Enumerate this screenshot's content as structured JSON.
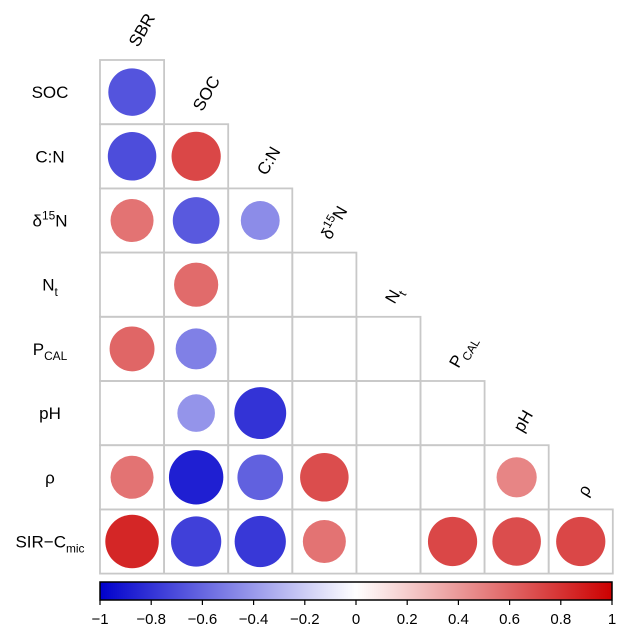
{
  "chart_data": {
    "type": "heatmap",
    "subtype": "correlation-circles-lower-triangle",
    "variables": [
      {
        "key": "SBR",
        "base": "SBR"
      },
      {
        "key": "SOC",
        "base": "SOC"
      },
      {
        "key": "C:N",
        "base": "C:N"
      },
      {
        "key": "d15N",
        "base": "δ",
        "sup": "15",
        "tail": "N"
      },
      {
        "key": "Nt",
        "base": "N",
        "sub": "t"
      },
      {
        "key": "PCAL",
        "base": "P",
        "sub": "CAL"
      },
      {
        "key": "pH",
        "base": "pH"
      },
      {
        "key": "rho",
        "base": "ρ"
      },
      {
        "key": "SIR-Cmic",
        "base": "SIR−C",
        "sub": "mic"
      }
    ],
    "row_variables": [
      "SOC",
      "C:N",
      "d15N",
      "Nt",
      "PCAL",
      "pH",
      "rho",
      "SIR-Cmic"
    ],
    "column_variables": [
      "SBR",
      "SOC",
      "C:N",
      "d15N",
      "Nt",
      "PCAL",
      "pH",
      "rho"
    ],
    "matrix": [
      [
        -0.67,
        null,
        null,
        null,
        null,
        null,
        null,
        null
      ],
      [
        -0.7,
        0.72,
        null,
        null,
        null,
        null,
        null,
        null
      ],
      [
        0.55,
        -0.65,
        -0.45,
        null,
        null,
        null,
        null,
        null
      ],
      [
        null,
        0.58,
        null,
        null,
        null,
        null,
        null,
        null
      ],
      [
        0.6,
        -0.5,
        null,
        null,
        null,
        null,
        null,
        null
      ],
      [
        null,
        -0.42,
        -0.8,
        null,
        null,
        null,
        null,
        null
      ],
      [
        0.55,
        -0.88,
        -0.62,
        0.7,
        null,
        null,
        0.48,
        null
      ],
      [
        0.85,
        -0.75,
        -0.78,
        0.55,
        null,
        0.72,
        0.7,
        0.72
      ]
    ],
    "color_scale": {
      "min": -1,
      "max": 1,
      "ticks": [
        -1,
        -0.8,
        -0.6,
        -0.4,
        -0.2,
        0,
        0.2,
        0.4,
        0.6,
        0.8,
        1
      ],
      "tick_labels": [
        "−1",
        "−0.8",
        "−0.6",
        "−0.4",
        "−0.2",
        "0",
        "0.2",
        "0.4",
        "0.6",
        "0.8",
        "1"
      ],
      "negative_color": "#0000cc",
      "mid_color": "#ffffff",
      "positive_color": "#cc0000",
      "position": "bottom"
    },
    "grid_color": "#c8c8c8"
  }
}
